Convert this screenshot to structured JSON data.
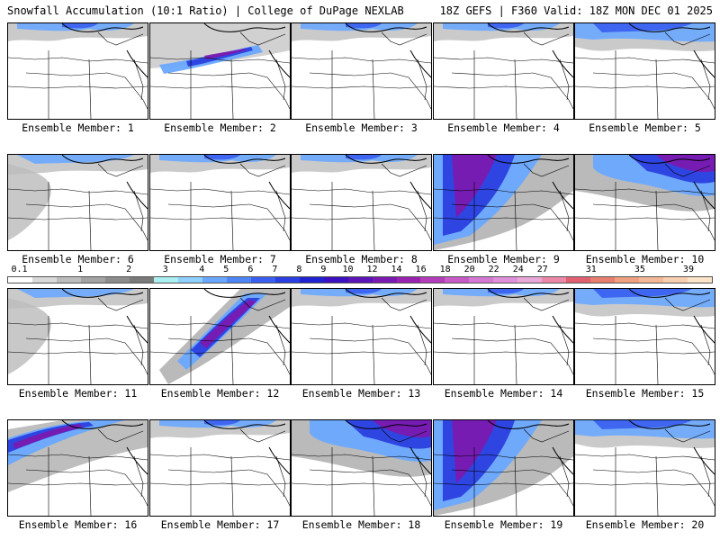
{
  "header": {
    "left_title": "Snowfall Accumulation (10:1 Ratio) | College of DuPage NEXLAB",
    "right_title": "18Z GEFS | F360 Valid: 18Z MON DEC 01 2025"
  },
  "caption_prefix": "Ensemble Member: ",
  "members": [
    {
      "number": "1",
      "pattern": "north-light"
    },
    {
      "number": "2",
      "pattern": "band-mid"
    },
    {
      "number": "3",
      "pattern": "north-light"
    },
    {
      "number": "4",
      "pattern": "north-light"
    },
    {
      "number": "5",
      "pattern": "north-band"
    },
    {
      "number": "6",
      "pattern": "north-gray"
    },
    {
      "number": "7",
      "pattern": "north-light"
    },
    {
      "number": "8",
      "pattern": "north-light"
    },
    {
      "number": "9",
      "pattern": "heavy-west"
    },
    {
      "number": "10",
      "pattern": "heavy-east"
    },
    {
      "number": "11",
      "pattern": "north-gray"
    },
    {
      "number": "12",
      "pattern": "heavy-center"
    },
    {
      "number": "13",
      "pattern": "north-light"
    },
    {
      "number": "14",
      "pattern": "north-light"
    },
    {
      "number": "15",
      "pattern": "north-band"
    },
    {
      "number": "16",
      "pattern": "band-west"
    },
    {
      "number": "17",
      "pattern": "north-light"
    },
    {
      "number": "18",
      "pattern": "heavy-east"
    },
    {
      "number": "19",
      "pattern": "heavy-west"
    },
    {
      "number": "20",
      "pattern": "north-band"
    }
  ],
  "scale": {
    "labels": [
      "0.1",
      "1",
      "2",
      "3",
      "4",
      "5",
      "6",
      "7",
      "8",
      "9",
      "10",
      "12",
      "14",
      "16",
      "18",
      "20",
      "22",
      "24",
      "27",
      "31",
      "35",
      "39"
    ],
    "colors": [
      "#ffffff",
      "#d9d9d9",
      "#bdbdbd",
      "#a3a3a3",
      "#8c8c8c",
      "#7a7a7a",
      "#aaf0f0",
      "#8ed0ff",
      "#6aa8ff",
      "#4f86f7",
      "#3a5ef0",
      "#2a3fe0",
      "#1f22d0",
      "#3a10c0",
      "#5a14b8",
      "#7a1ab0",
      "#9a22b0",
      "#b43cb8",
      "#c85ac8",
      "#d478d4",
      "#e090d8",
      "#e8a8d8",
      "#ee88a8",
      "#e06070",
      "#e87e6e",
      "#f0a080",
      "#f4b898",
      "#f8d0b0",
      "#fbe4c8"
    ]
  }
}
